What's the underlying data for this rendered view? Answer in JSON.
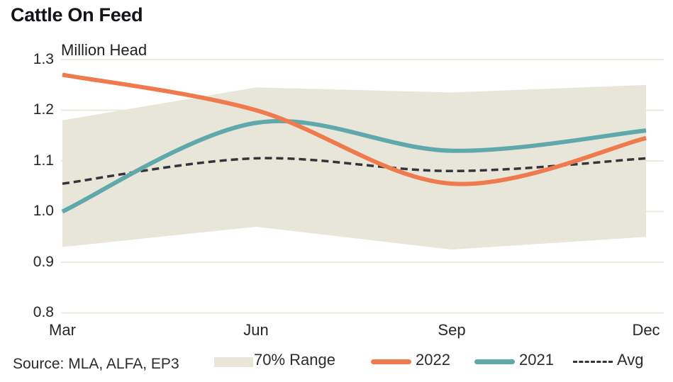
{
  "header": {
    "title": "Cattle On Feed",
    "units_label": "Million Head"
  },
  "footer": {
    "source": "Source: MLA, ALFA, EP3"
  },
  "axes": {
    "y_tick_labels": [
      "1.3",
      "1.2",
      "1.1",
      "1.0",
      "0.9",
      "0.8"
    ],
    "x_labels": [
      "Mar",
      "Jun",
      "Sep",
      "Dec"
    ]
  },
  "legend": {
    "items": [
      {
        "label": "70% Range",
        "swatch": "band"
      },
      {
        "label": "2022",
        "swatch": "line"
      },
      {
        "label": "2021",
        "swatch": "line"
      },
      {
        "label": "Avg",
        "swatch": "dashed-line"
      }
    ]
  },
  "colors": {
    "band": "#e8e6d9",
    "series_2022": "#ee7a4d",
    "series_2021": "#5fa8ac",
    "avg": "#35343c",
    "grid": "#edebe0",
    "text": "#26262b"
  },
  "chart_data": {
    "type": "line",
    "title": "Cattle On Feed",
    "ylabel": "Million Head",
    "categories": [
      "Mar",
      "Jun",
      "Sep",
      "Dec"
    ],
    "y_ticks": [
      1.3,
      1.2,
      1.1,
      1.0,
      0.9,
      0.8
    ],
    "ylim": [
      0.8,
      1.3
    ],
    "grid": true,
    "legend_position": "bottom",
    "band": {
      "name": "70% Range",
      "top": [
        1.18,
        1.245,
        1.235,
        1.25
      ],
      "bottom": [
        0.93,
        0.97,
        0.925,
        0.95
      ],
      "color": "#e8e6d9"
    },
    "series": [
      {
        "name": "2022",
        "values": [
          1.27,
          1.2,
          1.055,
          1.145
        ],
        "color": "#ee7a4d",
        "style": "solid"
      },
      {
        "name": "2021",
        "values": [
          1.0,
          1.175,
          1.12,
          1.16
        ],
        "color": "#5fa8ac",
        "style": "solid"
      },
      {
        "name": "Avg",
        "values": [
          1.055,
          1.105,
          1.08,
          1.105
        ],
        "color": "#35343c",
        "style": "dashed"
      }
    ]
  }
}
